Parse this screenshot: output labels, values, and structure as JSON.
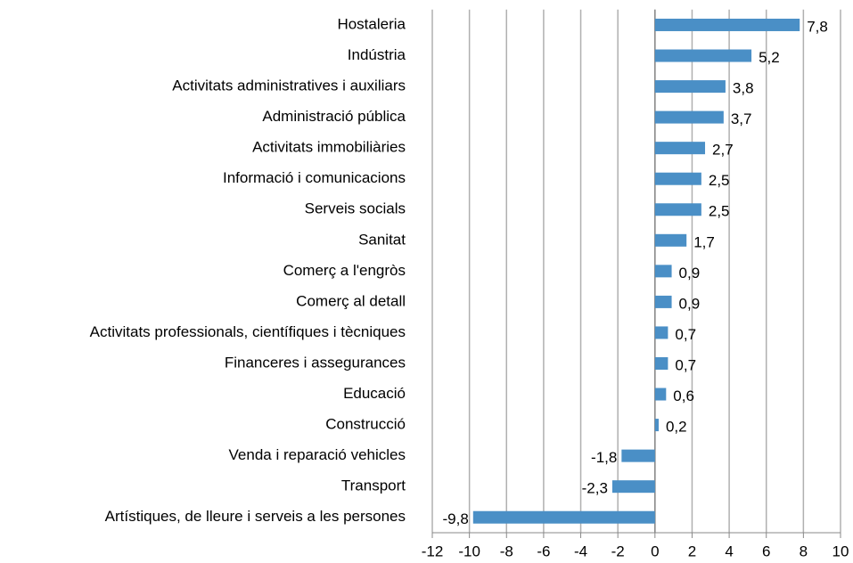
{
  "chart_data": {
    "type": "bar",
    "orientation": "horizontal",
    "categories": [
      "Hostaleria",
      "Indústria",
      "Activitats administratives i auxiliars",
      "Administració pública",
      "Activitats immobiliàries",
      "Informació i comunicacions",
      "Serveis socials",
      "Sanitat",
      "Comerç a l'engròs",
      "Comerç al detall",
      "Activitats professionals, científiques i tècniques",
      "Financeres i assegurances",
      "Educació",
      "Construcció",
      "Venda i reparació vehicles",
      "Transport",
      "Artístiques, de lleure i serveis a les persones"
    ],
    "values": [
      7.8,
      5.2,
      3.8,
      3.7,
      2.7,
      2.5,
      2.5,
      1.7,
      0.9,
      0.9,
      0.7,
      0.7,
      0.6,
      0.2,
      -1.8,
      -2.3,
      -9.8
    ],
    "value_labels": [
      "7,8",
      "5,2",
      "3,8",
      "3,7",
      "2,7",
      "2,5",
      "2,5",
      "1,7",
      "0,9",
      "0,9",
      "0,7",
      "0,7",
      "0,6",
      "0,2",
      "-1,8",
      "-2,3",
      "-9,8"
    ],
    "color": "#4a8fc6",
    "xlim": [
      -12,
      10
    ],
    "xticks": [
      -12,
      -10,
      -8,
      -6,
      -4,
      -2,
      0,
      2,
      4,
      6,
      8,
      10
    ],
    "grid": true
  }
}
